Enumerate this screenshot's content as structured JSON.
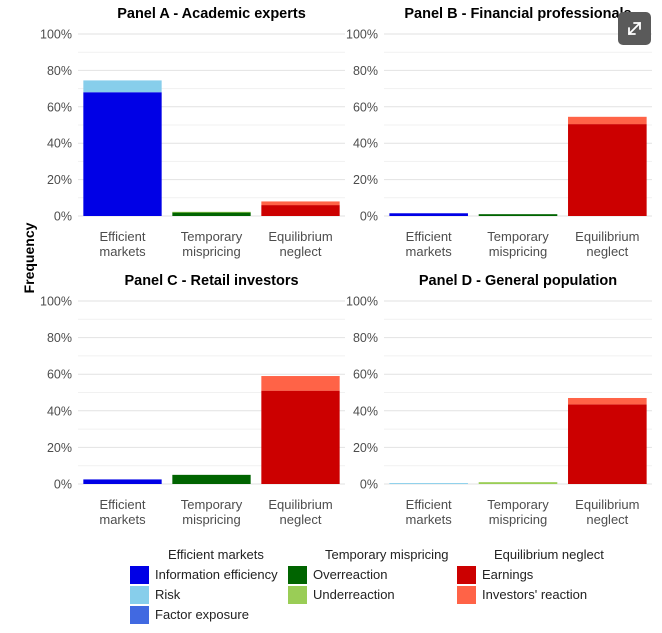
{
  "ui": {
    "expand_icon": "expand-arrows-icon",
    "background": "#ffffff",
    "expand_button_color": "#5a5a5a"
  },
  "chart_data": {
    "type": "bar",
    "stacked": true,
    "ylabel": "Frequency",
    "ylim": [
      0,
      100
    ],
    "yticks": [
      "0%",
      "20%",
      "40%",
      "60%",
      "80%",
      "100%"
    ],
    "grid": true,
    "categories": [
      "Efficient markets",
      "Temporary mispricing",
      "Equilibrium neglect"
    ],
    "panels": [
      {
        "title": "Panel A - Academic experts",
        "bars": [
          {
            "category": "Efficient markets",
            "segments": [
              {
                "series": "Information efficiency",
                "value": 68
              },
              {
                "series": "Risk",
                "value": 6.5
              }
            ]
          },
          {
            "category": "Temporary mispricing",
            "segments": [
              {
                "series": "Overreaction",
                "value": 2
              },
              {
                "series": "Underreaction",
                "value": 0.3
              }
            ]
          },
          {
            "category": "Equilibrium neglect",
            "segments": [
              {
                "series": "Earnings",
                "value": 6
              },
              {
                "series": "Investors' reaction",
                "value": 2
              }
            ]
          }
        ]
      },
      {
        "title": "Panel B - Financial professionals",
        "bars": [
          {
            "category": "Efficient markets",
            "segments": [
              {
                "series": "Information efficiency",
                "value": 1.5
              }
            ]
          },
          {
            "category": "Temporary mispricing",
            "segments": [
              {
                "series": "Overreaction",
                "value": 1
              }
            ]
          },
          {
            "category": "Equilibrium neglect",
            "segments": [
              {
                "series": "Earnings",
                "value": 50.5
              },
              {
                "series": "Investors' reaction",
                "value": 4
              }
            ]
          }
        ]
      },
      {
        "title": "Panel C - Retail investors",
        "bars": [
          {
            "category": "Efficient markets",
            "segments": [
              {
                "series": "Information efficiency",
                "value": 2.5
              }
            ]
          },
          {
            "category": "Temporary mispricing",
            "segments": [
              {
                "series": "Overreaction",
                "value": 5
              }
            ]
          },
          {
            "category": "Equilibrium neglect",
            "segments": [
              {
                "series": "Earnings",
                "value": 51
              },
              {
                "series": "Investors' reaction",
                "value": 8
              }
            ]
          }
        ]
      },
      {
        "title": "Panel D - General population",
        "bars": [
          {
            "category": "Efficient markets",
            "segments": [
              {
                "series": "Risk",
                "value": 0.5
              }
            ]
          },
          {
            "category": "Temporary mispricing",
            "segments": [
              {
                "series": "Underreaction",
                "value": 1
              }
            ]
          },
          {
            "category": "Equilibrium neglect",
            "segments": [
              {
                "series": "Earnings",
                "value": 43.5
              },
              {
                "series": "Investors' reaction",
                "value": 3.5
              }
            ]
          }
        ]
      }
    ],
    "series_colors": {
      "Information efficiency": "#0000e6",
      "Risk": "#87ceeb",
      "Factor exposure": "#4169e1",
      "Overreaction": "#006400",
      "Underreaction": "#9acd56",
      "Earnings": "#cc0000",
      "Investors' reaction": "#ff6347"
    },
    "legend": {
      "position": "bottom",
      "groups": [
        {
          "title": "Efficient markets",
          "items": [
            "Information efficiency",
            "Risk",
            "Factor exposure"
          ]
        },
        {
          "title": "Temporary mispricing",
          "items": [
            "Overreaction",
            "Underreaction"
          ]
        },
        {
          "title": "Equilibrium neglect",
          "items": [
            "Earnings",
            "Investors' reaction"
          ]
        }
      ]
    }
  }
}
